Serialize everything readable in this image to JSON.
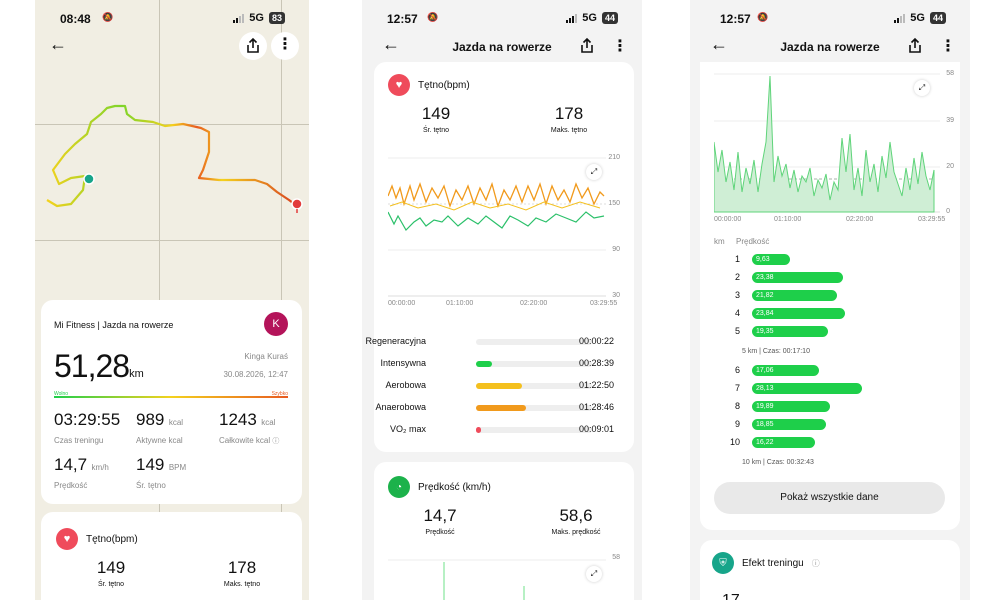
{
  "colors": {
    "accent_green": "#1ecf4a",
    "heart": "#ef4b5b",
    "orange": "#f19a1c",
    "yellow": "#f4c01e",
    "avatar": "#b4145a"
  },
  "screen1": {
    "status": {
      "time": "08:48",
      "network": "5G",
      "battery": "83"
    },
    "summary": {
      "source": "Mi Fitness | Jazda na rowerze",
      "avatar_letter": "K",
      "distance": "51,28",
      "distance_unit": "km",
      "user": "Kinga Kuraś",
      "datetime": "30.08.2026, 12:47",
      "slow_label": "Wolno",
      "fast_label": "Szybko"
    },
    "stats": [
      {
        "value": "03:29:55",
        "unit": "",
        "label": "Czas treningu"
      },
      {
        "value": "989",
        "unit": "kcal",
        "label": "Aktywne kcal"
      },
      {
        "value": "1243",
        "unit": "kcal",
        "label": "Całkowite kcal"
      },
      {
        "value": "14,7",
        "unit": "km/h",
        "label": "Prędkość"
      },
      {
        "value": "149",
        "unit": "BPM",
        "label": "Śr. tętno"
      }
    ],
    "hr_card": {
      "title": "Tętno(bpm)",
      "avg": "149",
      "avg_label": "Śr. tętno",
      "max": "178",
      "max_label": "Maks. tętno"
    }
  },
  "screen2": {
    "status": {
      "time": "12:57",
      "network": "5G",
      "battery": "44"
    },
    "title": "Jazda na rowerze",
    "hr": {
      "title": "Tętno(bpm)",
      "avg": "149",
      "avg_label": "Śr. tętno",
      "max": "178",
      "max_label": "Maks. tętno",
      "y_ticks": [
        "210",
        "150",
        "90",
        "30"
      ],
      "x_ticks": [
        "00:00:00",
        "01:10:00",
        "02:20:00",
        "03:29:55"
      ]
    },
    "zones": [
      {
        "name": "Regeneracyjna",
        "fraction": 0.0,
        "color": "#cccccc",
        "time": "00:00:22"
      },
      {
        "name": "Intensywna",
        "fraction": 0.14,
        "color": "#1ecf4a",
        "time": "00:28:39"
      },
      {
        "name": "Aerobowa",
        "fraction": 0.4,
        "color": "#f4c01e",
        "time": "01:22:50"
      },
      {
        "name": "Anaerobowa",
        "fraction": 0.43,
        "color": "#f19a1c",
        "time": "01:28:46"
      },
      {
        "name": "VO₂ max",
        "fraction": 0.04,
        "color": "#ef4b5b",
        "time": "00:09:01"
      }
    ],
    "speed": {
      "title": "Prędkość (km/h)",
      "avg": "14,7",
      "avg_label": "Prędkość",
      "max": "58,6",
      "max_label": "Maks. prędkość",
      "y_top": "58"
    }
  },
  "screen3": {
    "status": {
      "time": "12:57",
      "network": "5G",
      "battery": "44"
    },
    "title": "Jazda na rowerze",
    "chart": {
      "y_ticks": [
        "58",
        "39",
        "20",
        "0"
      ],
      "x_ticks": [
        "00:00:00",
        "01:10:00",
        "02:20:00",
        "03:29:55"
      ]
    },
    "km_header": "km",
    "speed_header": "Prędkość",
    "km_rows": [
      {
        "km": "1",
        "speed": "9,63"
      },
      {
        "km": "2",
        "speed": "23,38"
      },
      {
        "km": "3",
        "speed": "21,82"
      },
      {
        "km": "4",
        "speed": "23,84"
      },
      {
        "km": "5",
        "speed": "19,35"
      }
    ],
    "split1": "5 km | Czas: 00:17:10",
    "km_rows2": [
      {
        "km": "6",
        "speed": "17,06"
      },
      {
        "km": "7",
        "speed": "28,13"
      },
      {
        "km": "8",
        "speed": "19,89"
      },
      {
        "km": "9",
        "speed": "18,85"
      },
      {
        "km": "10",
        "speed": "16,22"
      }
    ],
    "split2": "10 km | Czas: 00:32:43",
    "show_all": "Pokaż wszystkie dane",
    "effect_title": "Efekt treningu",
    "effect_value": "17"
  }
}
